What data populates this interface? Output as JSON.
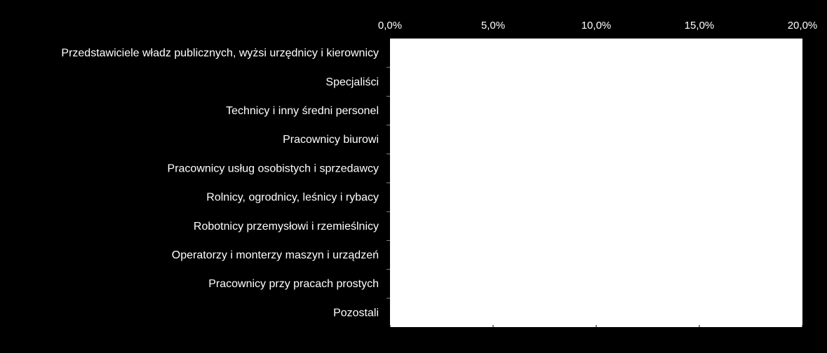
{
  "chart_data": {
    "type": "bar",
    "orientation": "horizontal",
    "categories": [
      "Przedstawiciele władz publicznych, wyżsi urzędnicy i kierownicy",
      "Specjaliści",
      "Technicy i inny średni personel",
      "Pracownicy biurowi",
      "Pracownicy usług osobistych i sprzedawcy",
      "Rolnicy, ogrodnicy, leśnicy i rybacy",
      "Robotnicy przemysłowi i rzemieślnicy",
      "Operatorzy i monterzy maszyn i urządzeń",
      "Pracownicy przy pracach prostych",
      "Pozostali"
    ],
    "values": [
      null,
      null,
      null,
      null,
      null,
      null,
      null,
      null,
      null,
      null
    ],
    "xlim": [
      0,
      20
    ],
    "xticks": [
      0,
      5,
      10,
      15,
      20
    ],
    "xtick_labels": [
      "0,0%",
      "5,0%",
      "10,0%",
      "15,0%",
      "20,0%"
    ],
    "x_axis_position": "top",
    "grid": false,
    "legend": "none",
    "title": "",
    "xlabel": "",
    "ylabel": ""
  },
  "colors": {
    "background": "#000000",
    "plot_area": "#ffffff",
    "text": "#ffffff",
    "axis": "#000000"
  }
}
